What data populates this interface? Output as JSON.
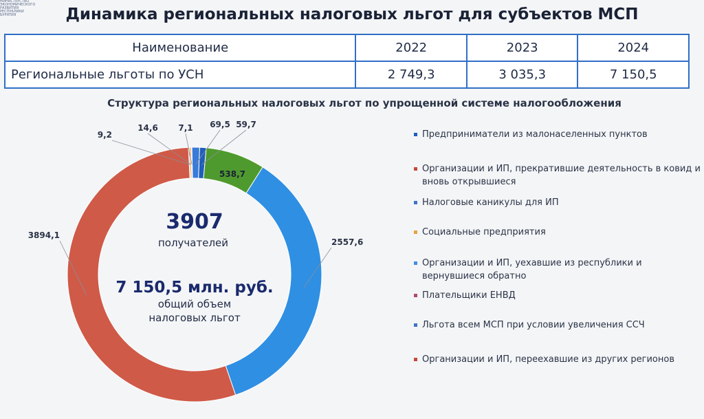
{
  "header": {
    "title": "Динамика региональных налоговых льгот для субъектов МСП",
    "logo_text": "МИНИСТЕРСТВО\nЭКОНОМИЧЕСКОГО\nРАЗВИТИЯ\nРЕСПУБЛИКИ\nБУРЯТИЯ"
  },
  "table": {
    "headers": [
      "Наименование",
      "2022",
      "2023",
      "2024"
    ],
    "rows": [
      {
        "name": "Региональные льготы по УСН",
        "values": [
          "2 749,3",
          "3 035,3",
          "7 150,5"
        ]
      }
    ]
  },
  "chart_data": {
    "type": "pie",
    "title": "Структура региональных налоговых льгот по упрощенной системе налогообложения",
    "donut": true,
    "center": {
      "count": "3907",
      "count_label": "получателей",
      "total": "7 150,5 млн. руб.",
      "total_label_1": "общий объем",
      "total_label_2": "налоговых льгот"
    },
    "slices": [
      {
        "name": "Предприниматели из малонаселенных пунктов",
        "value": 59.7,
        "label": "59,7",
        "color": "#1f5fb8"
      },
      {
        "name": "Налоговые каникулы для ИП",
        "value": 538.7,
        "label": "538,7",
        "color": "#4f9a2e"
      },
      {
        "name": "Организации и ИП, уехавшие из республики и вернувшиеся обратно",
        "value": 2557.6,
        "label": "2557,6",
        "color": "#2f8fe3"
      },
      {
        "name": "Организации и ИП, прекратившие деятельность в ковид и вновь открывшиеся",
        "value": 3894.1,
        "label": "3894,1",
        "color": "#cf5a48"
      },
      {
        "name": "Льгота всем МСП при условии увеличения ССЧ",
        "value": 9.2,
        "label": "9,2",
        "color": "#c0392b"
      },
      {
        "name": "Социальные предприятия",
        "value": 14.6,
        "label": "14,6",
        "color": "#e8a33c"
      },
      {
        "name": "Организации и ИП, переехавшие из других регионов",
        "value": 7.1,
        "label": "7,1",
        "color": "#b04a6e"
      },
      {
        "name": "Плательщики ЕНВД",
        "value": 69.5,
        "label": "69,5",
        "color": "#3a7ad8"
      }
    ],
    "legend": [
      {
        "label": "Предприниматели из малонаселенных пунктов",
        "color": "#1f5fb8"
      },
      {
        "label": "Организации и ИП, прекратившие деятельность в ковид и вновь открывшиеся",
        "color": "#c4493a"
      },
      {
        "label": "Налоговые каникулы для ИП",
        "color": "#3f73c9"
      },
      {
        "label": "Социальные предприятия",
        "color": "#e8a33c"
      },
      {
        "label": "Организации и ИП, уехавшие из республики и вернувшиеся обратно",
        "color": "#3f8fe0"
      },
      {
        "label": "Плательщики ЕНВД",
        "color": "#b04a6e"
      },
      {
        "label": "Льгота всем МСП при условии увеличения ССЧ",
        "color": "#3f73c9"
      },
      {
        "label": "Организации и ИП, переехавшие из других регионов",
        "color": "#c4493a"
      }
    ],
    "legend_placement": "right"
  }
}
